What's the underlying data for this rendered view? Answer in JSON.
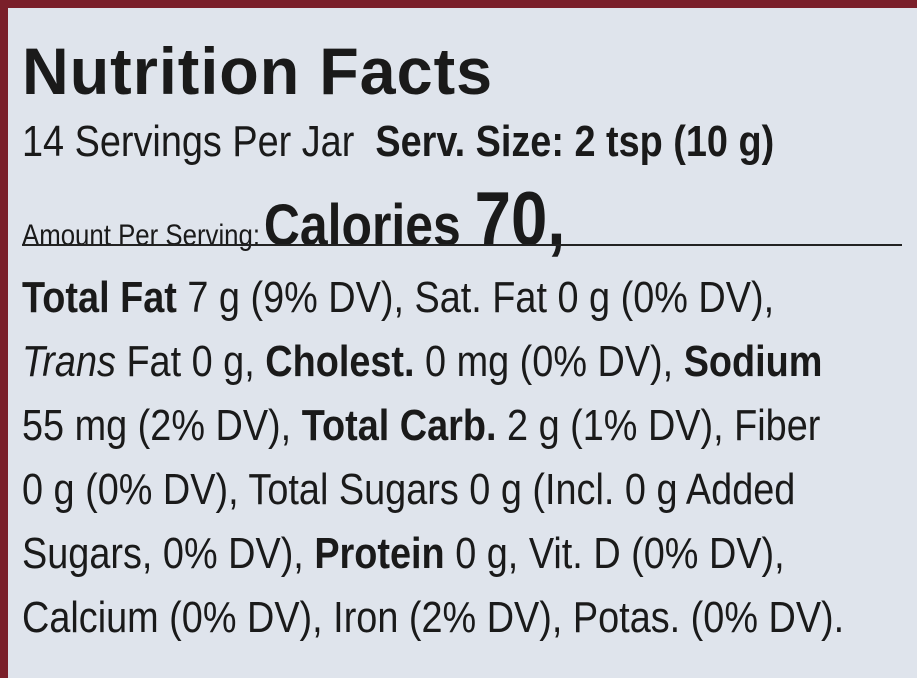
{
  "title": "Nutrition Facts",
  "servings": "14 Servings Per Jar",
  "serving_size": "Serv. Size: 2 tsp (10 g)",
  "amount_per_serving": "Amount Per Serving:",
  "calories_label": "Calories",
  "calories_value": "70,",
  "lines": [
    [
      {
        "text": "Total Fat",
        "style": "bold"
      },
      {
        "text": " 7 g (9% DV), Sat. Fat 0 g (0% DV),",
        "style": "normal"
      }
    ],
    [
      {
        "text": "Trans",
        "style": "italic"
      },
      {
        "text": " Fat 0 g, ",
        "style": "normal"
      },
      {
        "text": "Cholest.",
        "style": "bold"
      },
      {
        "text": " 0 mg (0% DV), ",
        "style": "normal"
      },
      {
        "text": "Sodium",
        "style": "bold"
      }
    ],
    [
      {
        "text": "55 mg (2% DV), ",
        "style": "normal"
      },
      {
        "text": "Total Carb.",
        "style": "bold"
      },
      {
        "text": " 2 g (1% DV), Fiber",
        "style": "normal"
      }
    ],
    [
      {
        "text": "0 g (0% DV), Total Sugars 0 g (Incl. 0 g Added",
        "style": "normal"
      }
    ],
    [
      {
        "text": "Sugars, 0% DV), ",
        "style": "normal"
      },
      {
        "text": "Protein",
        "style": "bold"
      },
      {
        "text": " 0 g, Vit. D (0% DV),",
        "style": "normal"
      }
    ],
    [
      {
        "text": "Calcium (0% DV), Iron (2% DV), Potas. (0% DV).",
        "style": "normal"
      }
    ]
  ]
}
